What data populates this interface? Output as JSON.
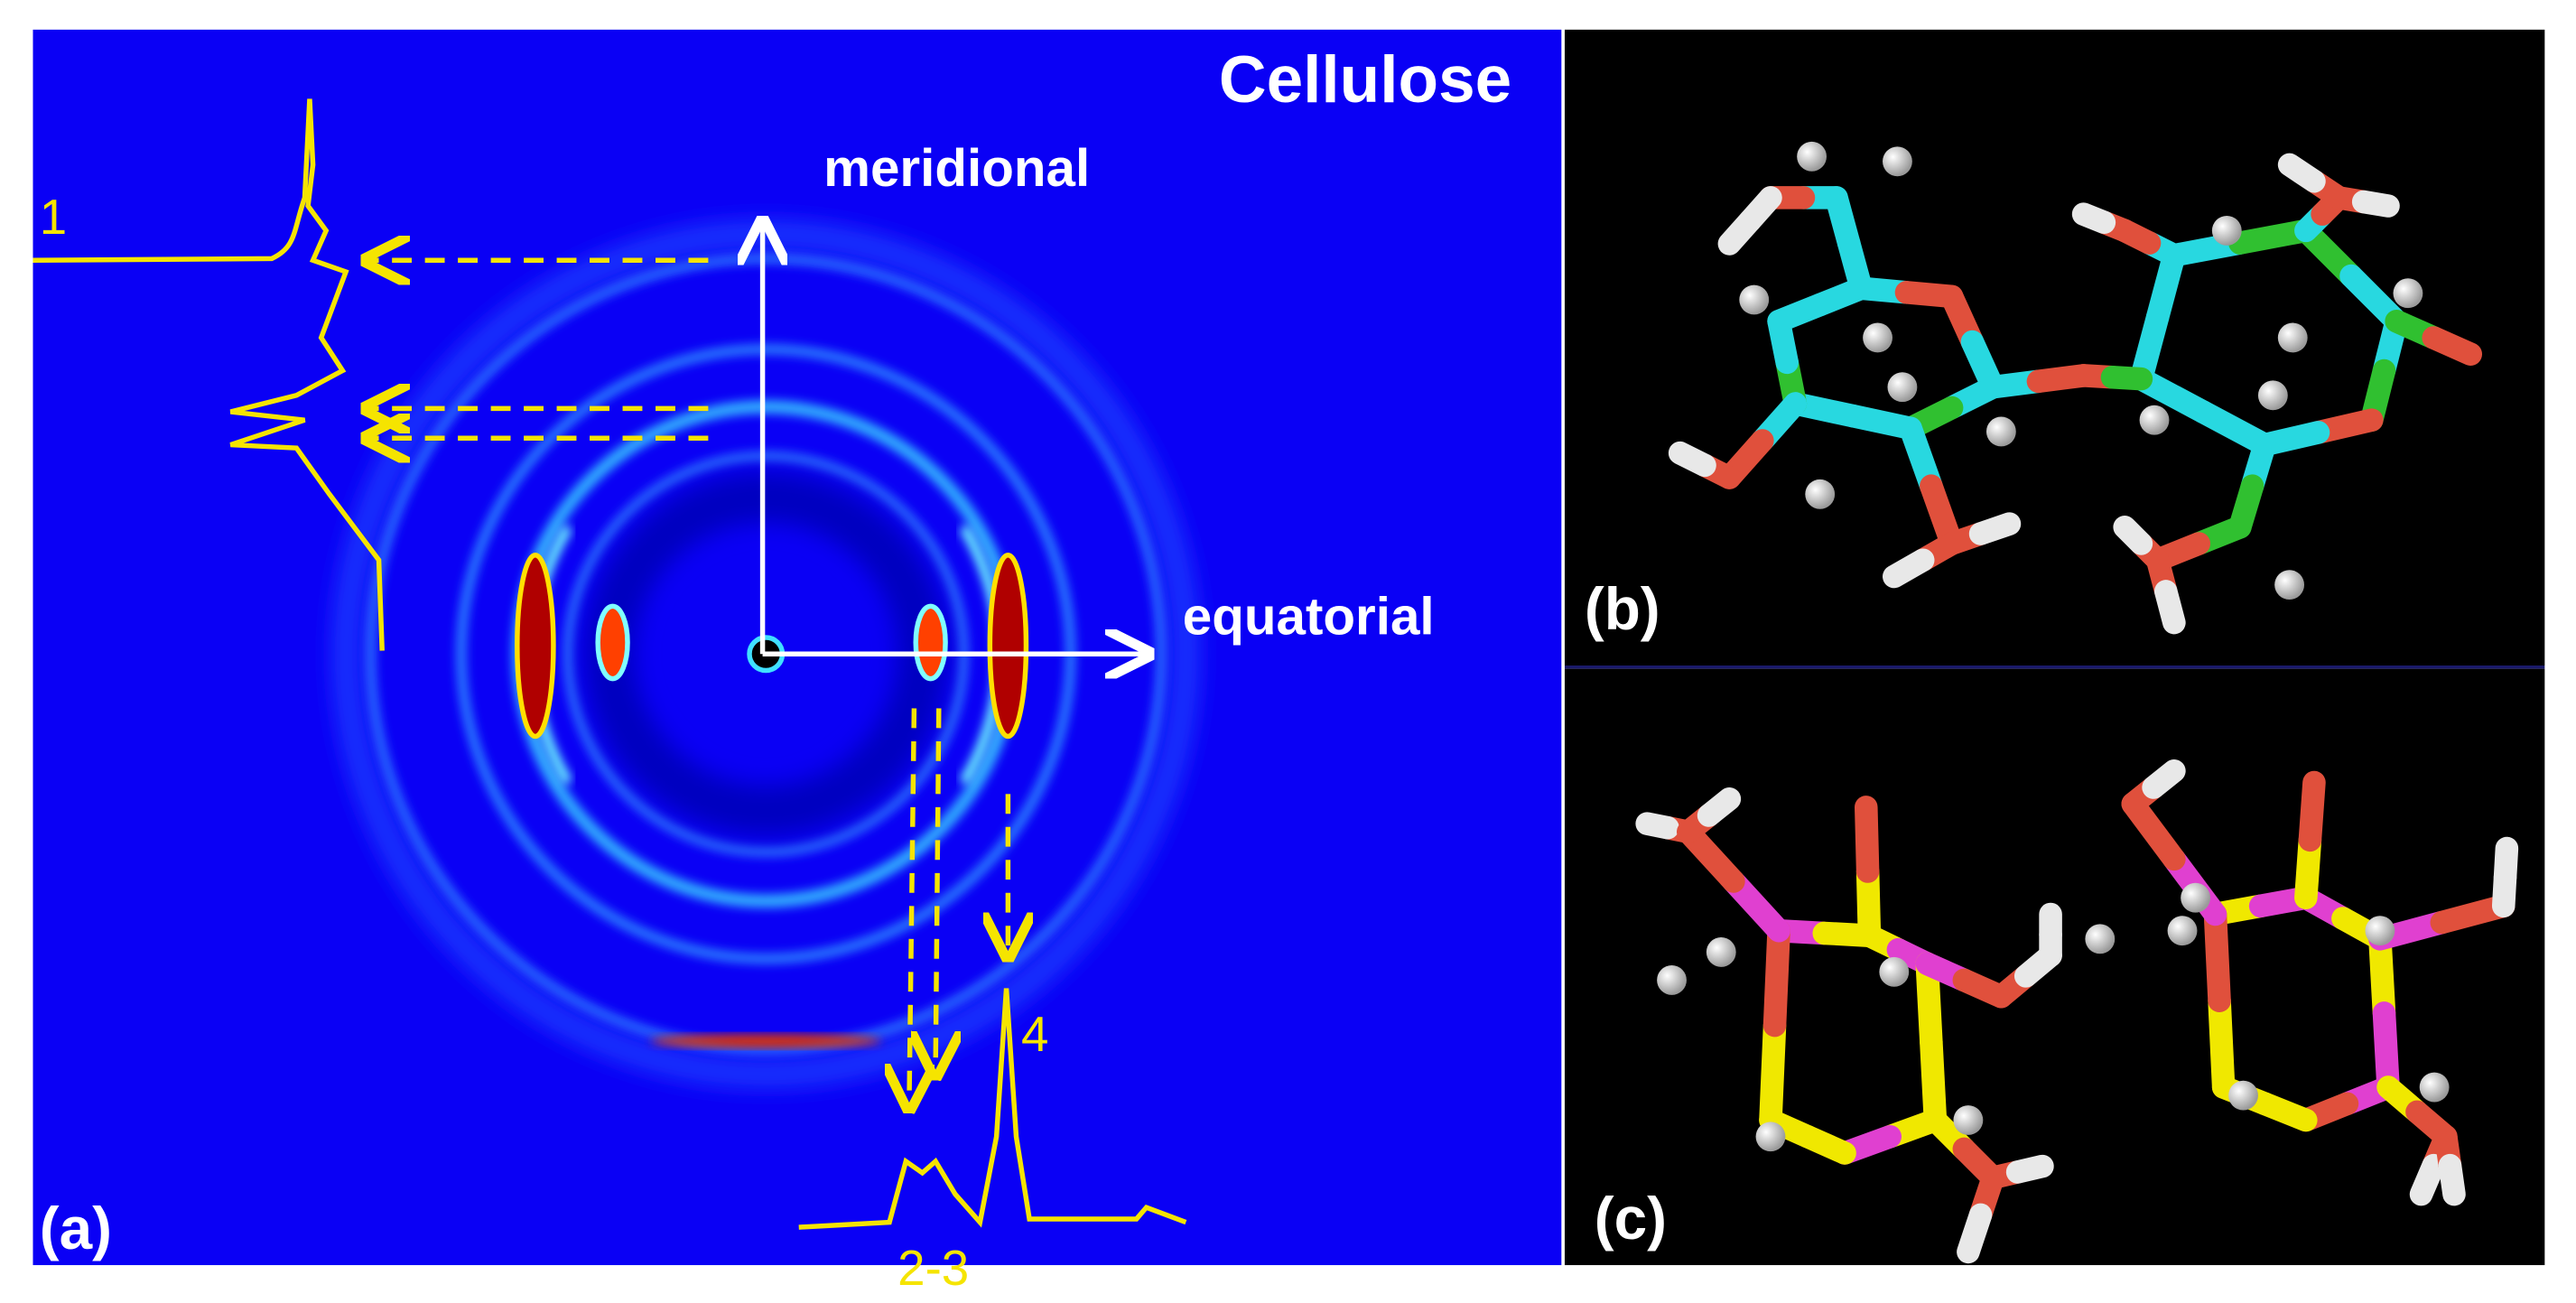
{
  "panel_a": {
    "label": "(a)",
    "title": "Cellulose",
    "axis_meridional": "meridional",
    "axis_equatorial": "equatorial",
    "peak_1": "1",
    "peak_2_3": "2-3",
    "peak_4": "4"
  },
  "panel_b": {
    "label": "(b)"
  },
  "panel_c": {
    "label": "(c)"
  }
}
